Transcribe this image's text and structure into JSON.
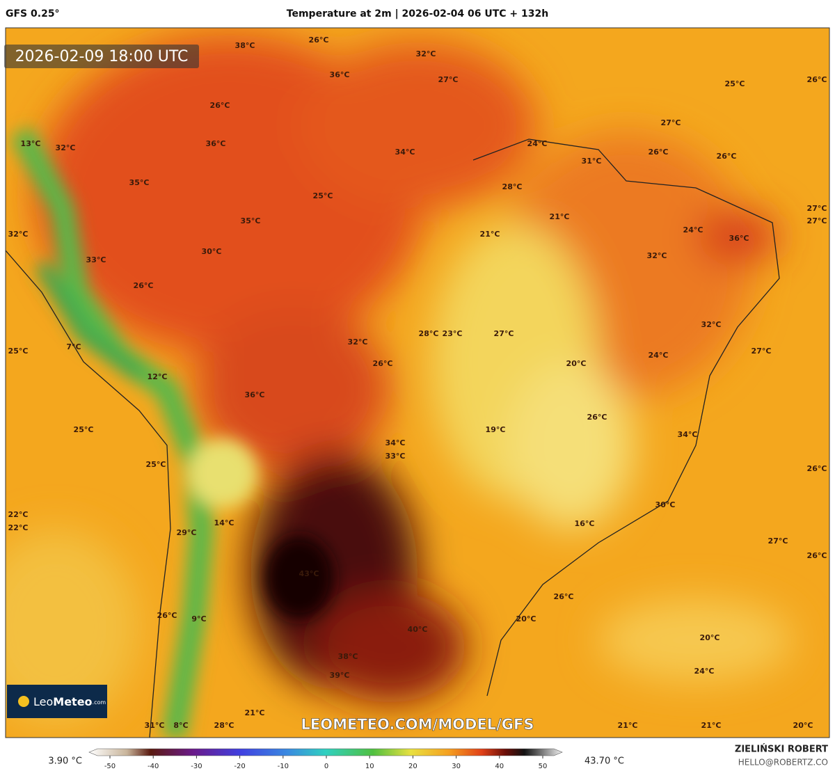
{
  "header": {
    "model": "GFS 0.25°",
    "title": "Temperature at 2m | 2026-02-04 06 UTC + 132h"
  },
  "map": {
    "valid_time": "2026-02-09 18:00 UTC",
    "watermark": "LEOMETEO.COM/MODEL/GFS",
    "logo": {
      "name_light": "Leo",
      "name_bold": "Meteo",
      "suffix": ".com"
    },
    "labels": [
      "38°C",
      "26°C",
      "32°C",
      "36°C",
      "27°C",
      "25°C",
      "26°C",
      "26°C",
      "27°C",
      "13°C",
      "32°C",
      "36°C",
      "34°C",
      "24°C",
      "26°C",
      "26°C",
      "31°C",
      "35°C",
      "25°C",
      "28°C",
      "27°C",
      "27°C",
      "21°C",
      "35°C",
      "24°C",
      "32°C",
      "21°C",
      "36°C",
      "30°C",
      "33°C",
      "32°C",
      "26°C",
      "32°C",
      "28°C",
      "23°C",
      "27°C",
      "32°C",
      "7°C",
      "25°C",
      "27°C",
      "24°C",
      "26°C",
      "20°C",
      "12°C",
      "36°C",
      "26°C",
      "25°C",
      "19°C",
      "34°C",
      "34°C",
      "33°C",
      "25°C",
      "26°C",
      "30°C",
      "22°C",
      "22°C",
      "14°C",
      "16°C",
      "29°C",
      "27°C",
      "26°C",
      "43°C",
      "26°C",
      "26°C",
      "9°C",
      "20°C",
      "40°C",
      "20°C",
      "38°C",
      "24°C",
      "39°C",
      "21°C",
      "28°C",
      "31°C",
      "8°C",
      "21°C",
      "21°C",
      "20°C"
    ]
  },
  "colorbar": {
    "min_label": "3.90 °C",
    "max_label": "43.70 °C",
    "ticks": [
      -50,
      -40,
      -30,
      -20,
      -10,
      0,
      10,
      20,
      30,
      40,
      50
    ]
  },
  "footer": {
    "author": "ZIELIŃSKI ROBERT",
    "email": "HELLO@ROBERTZ.CO"
  }
}
